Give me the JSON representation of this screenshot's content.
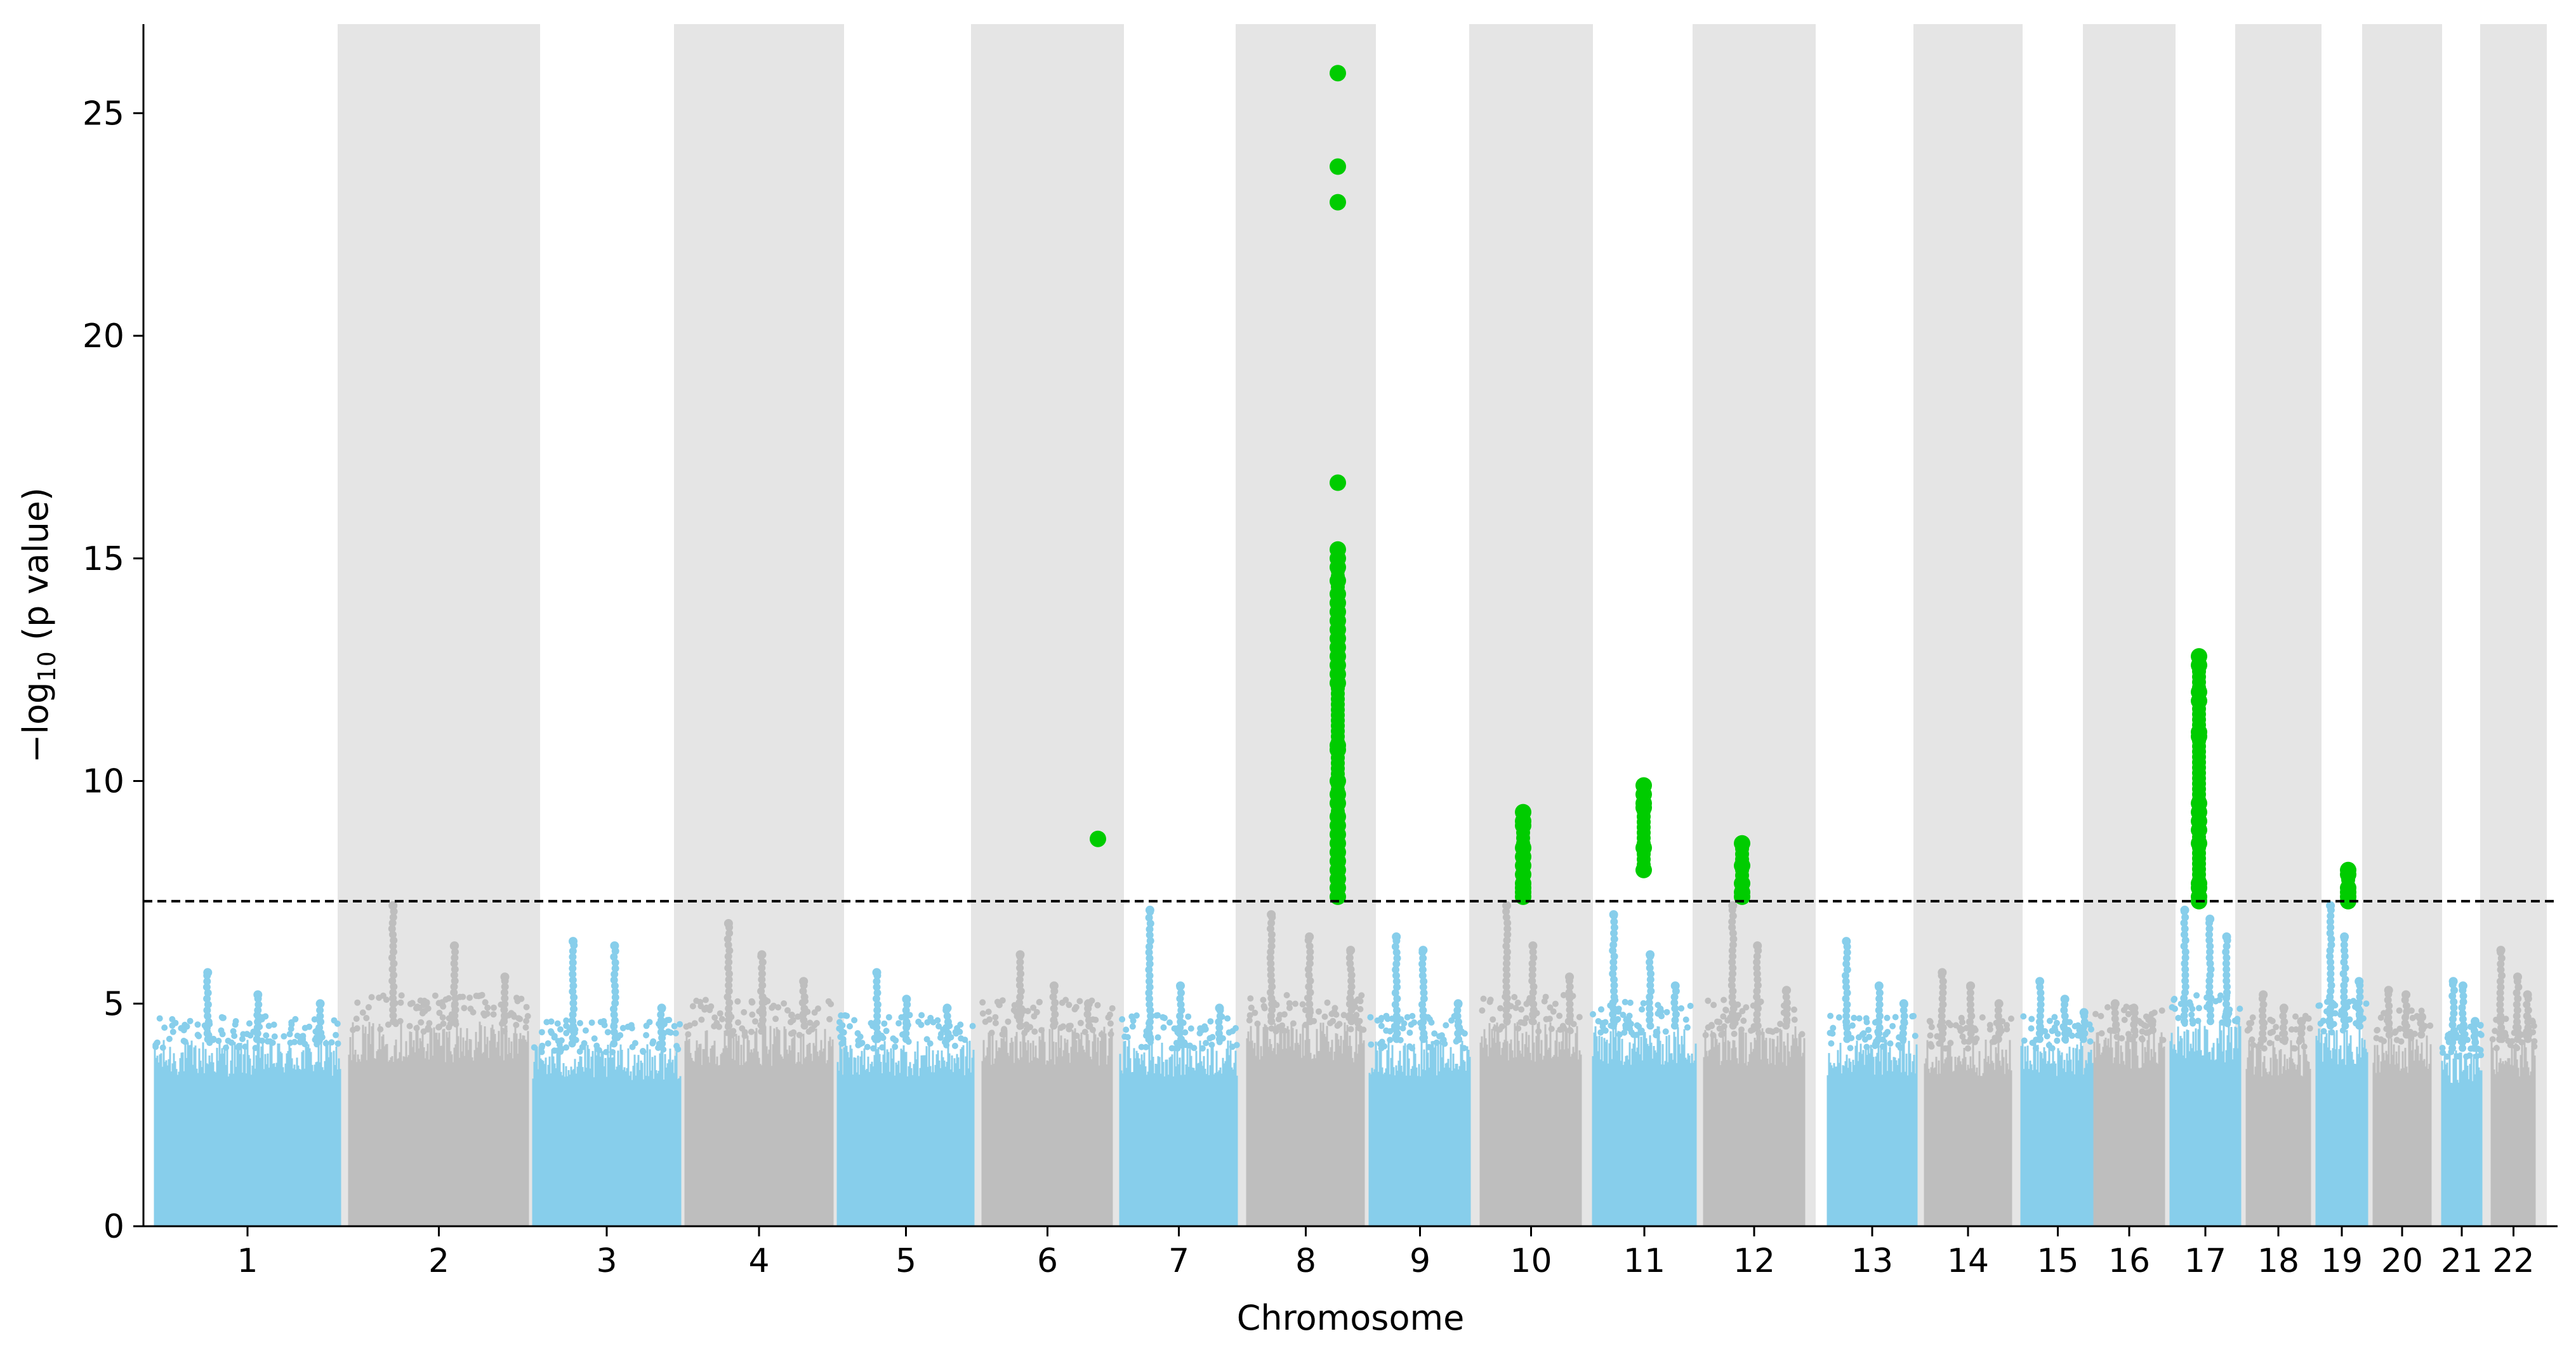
{
  "chart_data": {
    "type": "scatter",
    "subtype": "manhattan",
    "title": "",
    "xlabel": "Chromosome",
    "ylabel": {
      "base": "−log",
      "subscript": "10",
      "suffix": " (p value)"
    },
    "ylim": [
      0,
      27
    ],
    "yticks": [
      0,
      5,
      10,
      15,
      20,
      25
    ],
    "significance_threshold": 7.3,
    "threshold_style": "dashed",
    "shading": "alternating gray bands on even chromosomes",
    "colors": {
      "odd_chromosome": "#87ceeb",
      "even_chromosome": "#bebebe",
      "significant": "#00cc00",
      "band": "#e5e5e5",
      "threshold": "#000000"
    },
    "chromosomes": [
      {
        "label": "1",
        "background_max": 4.2,
        "peaks": [
          5.7,
          5.2,
          5.0
        ]
      },
      {
        "label": "2",
        "background_max": 4.6,
        "peaks": [
          7.2,
          6.3,
          5.6
        ]
      },
      {
        "label": "3",
        "background_max": 4.1,
        "peaks": [
          6.4,
          6.3,
          4.9
        ]
      },
      {
        "label": "4",
        "background_max": 4.5,
        "peaks": [
          6.8,
          6.1,
          5.5
        ]
      },
      {
        "label": "5",
        "background_max": 4.2,
        "peaks": [
          5.7,
          5.1,
          4.9
        ]
      },
      {
        "label": "6",
        "background_max": 4.5,
        "peaks": [
          6.1,
          5.4,
          5.0
        ]
      },
      {
        "label": "7",
        "background_max": 4.2,
        "peaks": [
          7.1,
          5.4,
          4.9
        ]
      },
      {
        "label": "8",
        "background_max": 4.6,
        "peaks": [
          7.0,
          6.5,
          6.2
        ]
      },
      {
        "label": "9",
        "background_max": 4.2,
        "peaks": [
          6.5,
          6.2,
          5.0
        ]
      },
      {
        "label": "10",
        "background_max": 4.6,
        "peaks": [
          7.2,
          6.3,
          5.6
        ]
      },
      {
        "label": "11",
        "background_max": 4.5,
        "peaks": [
          7.0,
          6.1,
          5.4
        ]
      },
      {
        "label": "12",
        "background_max": 4.5,
        "peaks": [
          7.2,
          6.3,
          5.3
        ]
      },
      {
        "label": "13",
        "background_max": 4.2,
        "peaks": [
          6.4,
          5.4,
          5.0
        ]
      },
      {
        "label": "14",
        "background_max": 4.2,
        "peaks": [
          5.7,
          5.4,
          5.0
        ]
      },
      {
        "label": "15",
        "background_max": 4.2,
        "peaks": [
          5.5,
          5.1,
          4.8
        ]
      },
      {
        "label": "16",
        "background_max": 4.4,
        "peaks": [
          5.0,
          4.9,
          4.6
        ]
      },
      {
        "label": "17",
        "background_max": 4.6,
        "peaks": [
          7.1,
          6.9,
          6.5
        ]
      },
      {
        "label": "18",
        "background_max": 4.2,
        "peaks": [
          5.2,
          4.9,
          4.6
        ]
      },
      {
        "label": "19",
        "background_max": 4.5,
        "peaks": [
          7.2,
          6.5,
          5.5
        ]
      },
      {
        "label": "20",
        "background_max": 4.3,
        "peaks": [
          5.3,
          5.2,
          4.7
        ]
      },
      {
        "label": "21",
        "background_max": 4.0,
        "peaks": [
          5.5,
          5.4,
          4.6
        ]
      },
      {
        "label": "22",
        "background_max": 4.2,
        "peaks": [
          6.2,
          5.6,
          5.2
        ]
      }
    ],
    "significant_hits": [
      {
        "chromosome": "6",
        "values": [
          8.7
        ]
      },
      {
        "chromosome": "8",
        "values": [
          25.9,
          23.8,
          23.0,
          16.7,
          15.2,
          15.0,
          14.8,
          14.5,
          14.2,
          14.0,
          13.8,
          13.6,
          13.4,
          13.2,
          13.0,
          12.8,
          12.6,
          12.4,
          12.2,
          10.8,
          10.7,
          10.0,
          9.7,
          9.5,
          9.2,
          9.0,
          8.8,
          8.6,
          8.4,
          8.2,
          8.0,
          7.8,
          7.6,
          7.4
        ]
      },
      {
        "chromosome": "10",
        "values": [
          9.3,
          9.1,
          9.0,
          8.5,
          8.3,
          8.1,
          7.9,
          7.7,
          7.6,
          7.5,
          7.4
        ]
      },
      {
        "chromosome": "11",
        "values": [
          9.9,
          9.7,
          9.5,
          9.4,
          8.5,
          8.0
        ]
      },
      {
        "chromosome": "12",
        "values": [
          8.6,
          8.1,
          7.7,
          7.5,
          7.4
        ]
      },
      {
        "chromosome": "17",
        "values": [
          12.8,
          12.6,
          12.0,
          11.8,
          11.1,
          11.0,
          9.5,
          9.3,
          9.1,
          8.9,
          8.6,
          7.7,
          7.6,
          7.4,
          7.3
        ]
      },
      {
        "chromosome": "19",
        "values": [
          8.0,
          7.9,
          7.6,
          7.5,
          7.4,
          7.3
        ]
      }
    ]
  }
}
